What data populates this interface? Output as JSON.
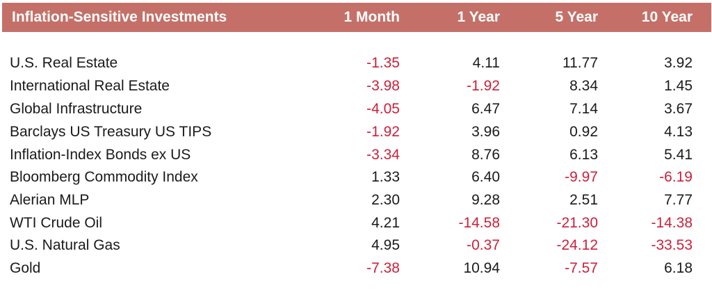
{
  "header": {
    "title": "Inflation-Sensitive Investments",
    "columns": [
      "1 Month",
      "1 Year",
      "5 Year",
      "10 Year"
    ]
  },
  "colors": {
    "header_bg": "#c47068",
    "negative": "#cc1f3a"
  },
  "rows": [
    {
      "name": "U.S. Real Estate",
      "values": [
        "-1.35",
        "4.11",
        "11.77",
        "3.92"
      ]
    },
    {
      "name": "International Real Estate",
      "values": [
        "-3.98",
        "-1.92",
        "8.34",
        "1.45"
      ]
    },
    {
      "name": "Global Infrastructure",
      "values": [
        "-4.05",
        "6.47",
        "7.14",
        "3.67"
      ]
    },
    {
      "name": "Barclays US Treasury US TIPS",
      "values": [
        "-1.92",
        "3.96",
        "0.92",
        "4.13"
      ]
    },
    {
      "name": "Inflation-Index Bonds ex US",
      "values": [
        "-3.34",
        "8.76",
        "6.13",
        "5.41"
      ]
    },
    {
      "name": "Bloomberg Commodity Index",
      "values": [
        "1.33",
        "6.40",
        "-9.97",
        "-6.19"
      ]
    },
    {
      "name": "Alerian MLP",
      "values": [
        "2.30",
        "9.28",
        "2.51",
        "7.77"
      ]
    },
    {
      "name": "WTI Crude Oil",
      "values": [
        "4.21",
        "-14.58",
        "-21.30",
        "-14.38"
      ]
    },
    {
      "name": "U.S. Natural Gas",
      "values": [
        "4.95",
        "-0.37",
        "-24.12",
        "-33.53"
      ]
    },
    {
      "name": "Gold",
      "values": [
        "-7.38",
        "10.94",
        "-7.57",
        "6.18"
      ]
    }
  ]
}
